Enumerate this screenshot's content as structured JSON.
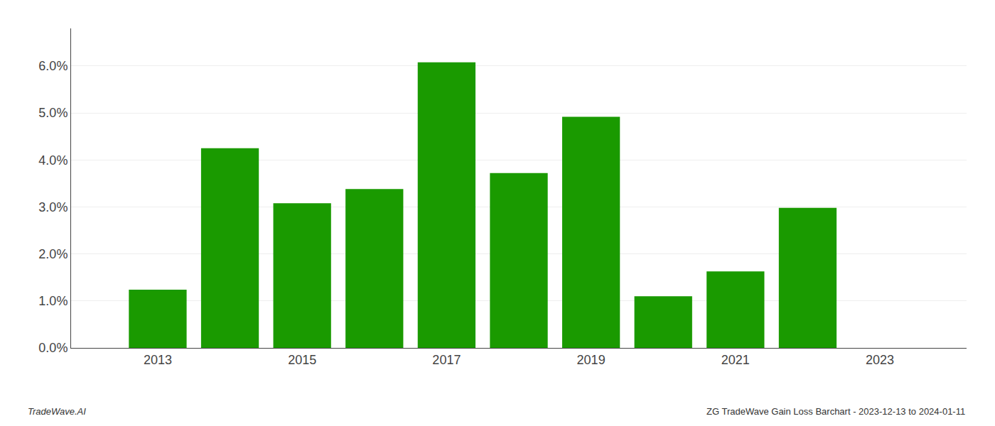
{
  "chart_data": {
    "type": "bar",
    "x": [
      2013,
      2014,
      2015,
      2016,
      2017,
      2018,
      2019,
      2020,
      2021,
      2022,
      2023
    ],
    "values": [
      0.0124,
      0.0425,
      0.0308,
      0.0338,
      0.0608,
      0.0372,
      0.0492,
      0.011,
      0.0163,
      0.0298,
      0.0
    ],
    "color": "#1a9a00",
    "xlim": [
      2011.8,
      2024.2
    ],
    "xticks": [
      2013,
      2015,
      2017,
      2019,
      2021,
      2023
    ],
    "ylim": [
      0.0,
      0.068
    ],
    "yticks": [
      {
        "value": 0.0,
        "label": "0.0%"
      },
      {
        "value": 0.01,
        "label": "1.0%"
      },
      {
        "value": 0.02,
        "label": "2.0%"
      },
      {
        "value": 0.03,
        "label": "3.0%"
      },
      {
        "value": 0.04,
        "label": "4.0%"
      },
      {
        "value": 0.05,
        "label": "5.0%"
      },
      {
        "value": 0.06,
        "label": "6.0%"
      }
    ],
    "grid": true,
    "annotations": [
      "TradeWave.AI",
      "ZG TradeWave Gain Loss Barchart - 2023-12-13 to 2024-01-11"
    ]
  }
}
